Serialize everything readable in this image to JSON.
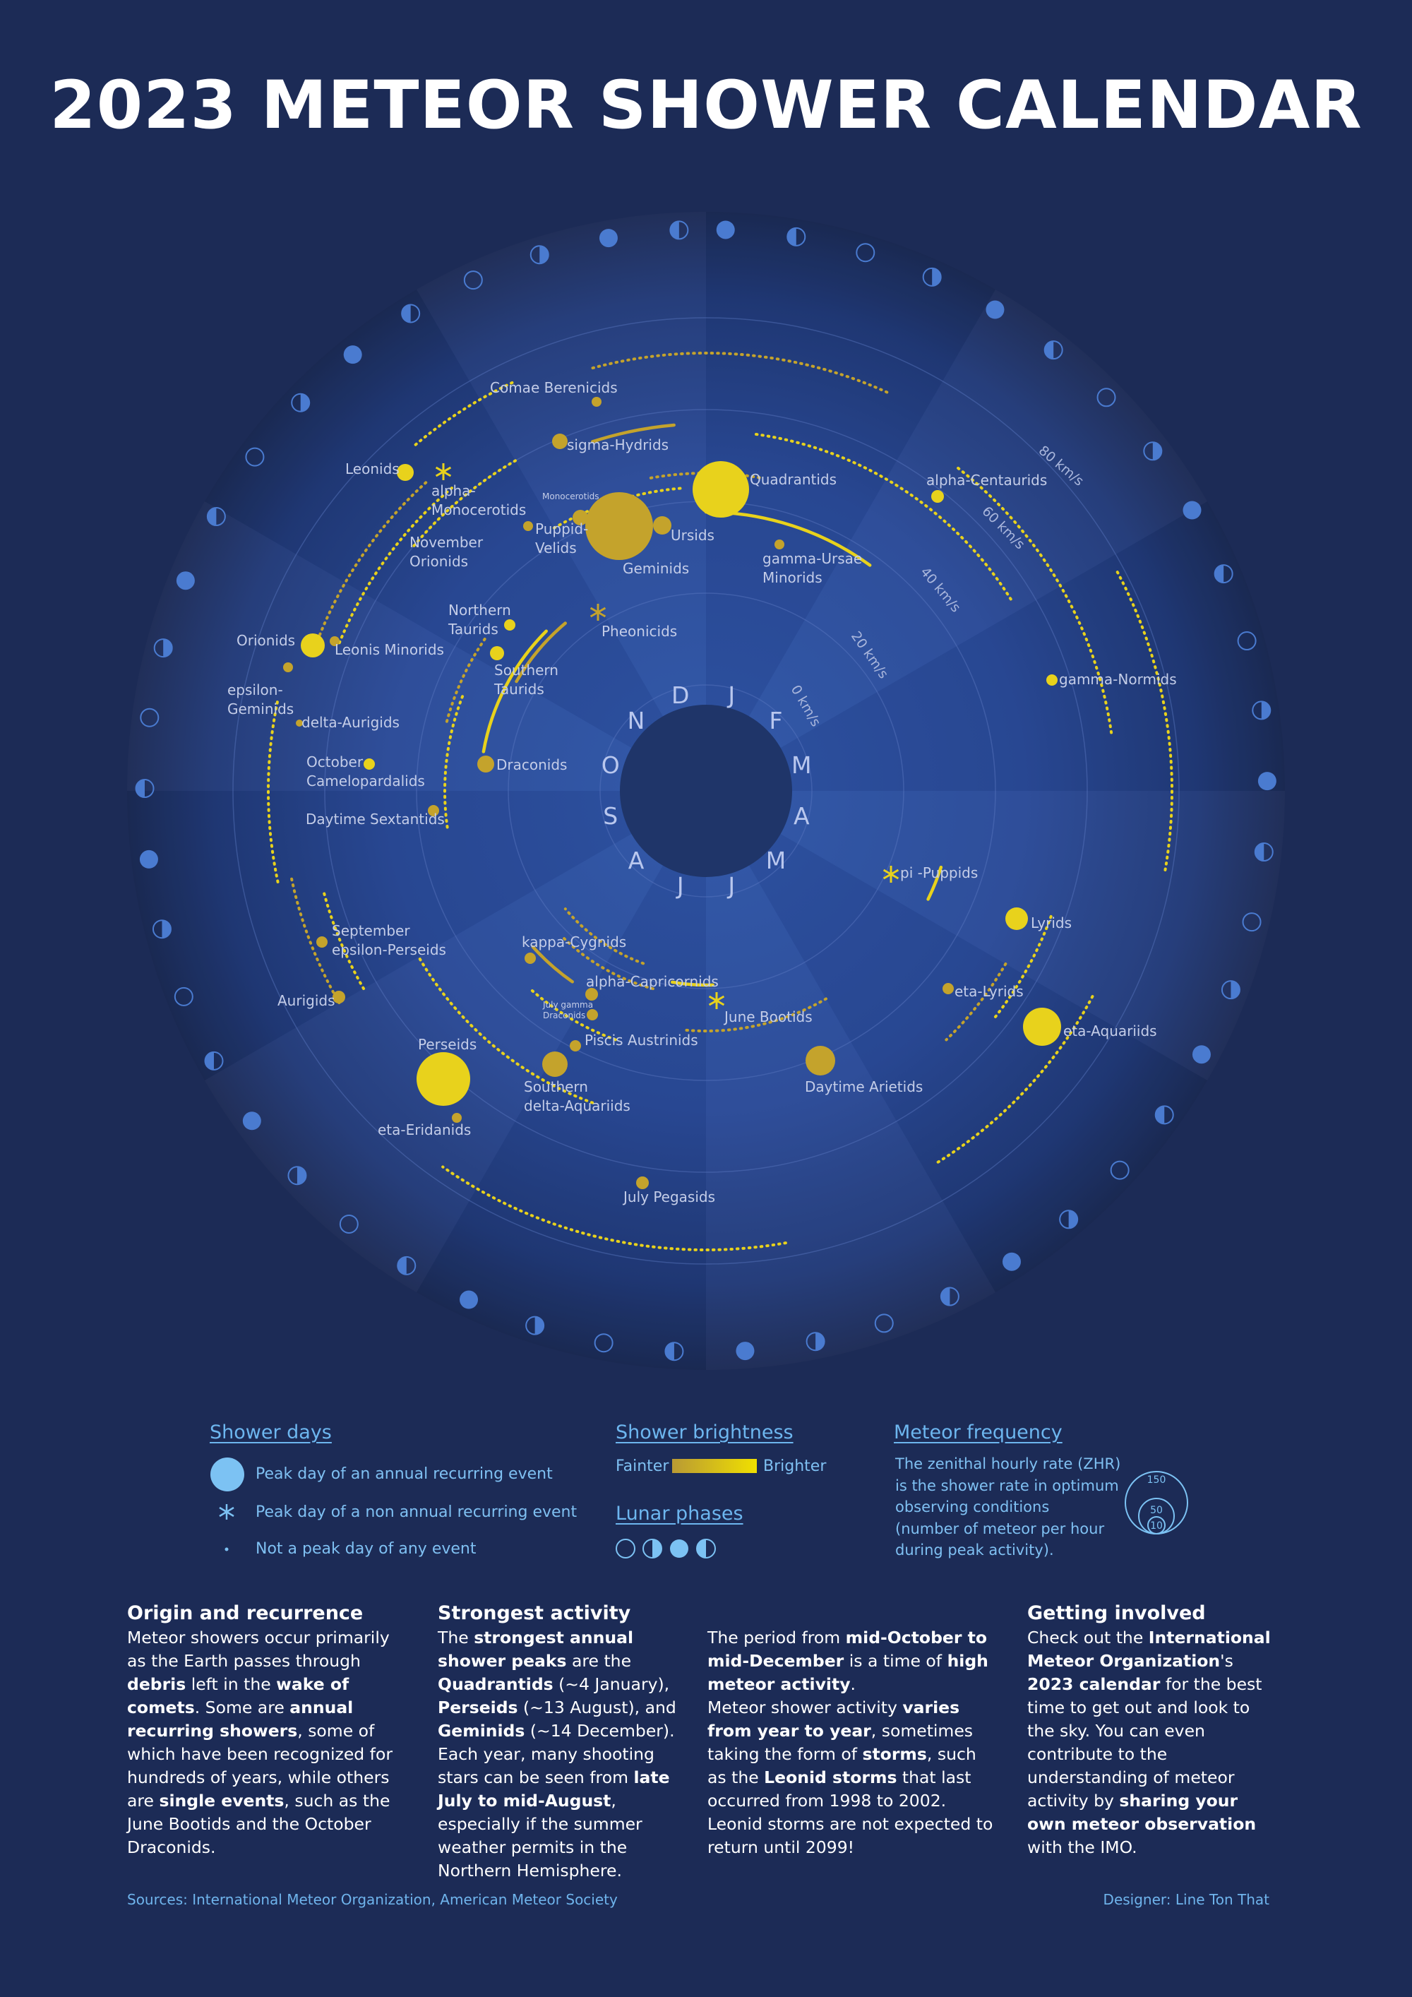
{
  "title": "2023 METEOR SHOWER CALENDAR",
  "months": [
    "J",
    "F",
    "M",
    "A",
    "M",
    "J",
    "J",
    "A",
    "S",
    "O",
    "N",
    "D"
  ],
  "speed_labels": [
    "0 km/s",
    "20 km/s",
    "40 km/s",
    "60 km/s",
    "80 km/s"
  ],
  "showers": [
    {
      "name": "Quadrantids"
    },
    {
      "name": "Ursids"
    },
    {
      "name": "Geminids"
    },
    {
      "name": "gamma-Ursae Minorids"
    },
    {
      "name": "alpha-Centaurids"
    },
    {
      "name": "gamma-Normids"
    },
    {
      "name": "pi -Puppids"
    },
    {
      "name": "Lyrids"
    },
    {
      "name": "eta-Lyrids"
    },
    {
      "name": "eta-Aquariids"
    },
    {
      "name": "Daytime Arietids"
    },
    {
      "name": "June Bootids"
    },
    {
      "name": "alpha-Capricornids"
    },
    {
      "name": "kappa-Cygnids"
    },
    {
      "name": "Piscis Austrinids"
    },
    {
      "name": "July gamma Draconids"
    },
    {
      "name": "Southern delta-Aquariids"
    },
    {
      "name": "Perseids"
    },
    {
      "name": "eta-Eridanids"
    },
    {
      "name": "July Pegasids"
    },
    {
      "name": "Aurigids"
    },
    {
      "name": "September epsilon-Perseids"
    },
    {
      "name": "Daytime Sextantids"
    },
    {
      "name": "October Camelopardalids"
    },
    {
      "name": "Draconids"
    },
    {
      "name": "delta-Aurigids"
    },
    {
      "name": "epsilon-Geminids"
    },
    {
      "name": "Orionids"
    },
    {
      "name": "Leonis Minorids"
    },
    {
      "name": "Southern Taurids"
    },
    {
      "name": "Northern Taurids"
    },
    {
      "name": "Pheonicids"
    },
    {
      "name": "November Orionids"
    },
    {
      "name": "Leonids"
    },
    {
      "name": "alpha-Monocerotids"
    },
    {
      "name": "Monocerotids"
    },
    {
      "name": "Puppid-Velids"
    },
    {
      "name": "sigma-Hydrids"
    },
    {
      "name": "Comae Berenicids"
    }
  ],
  "legend": {
    "shower_days": {
      "title": "Shower days",
      "items": [
        "Peak day of an annual recurring event",
        "Peak day of a non annual recurring event",
        "Not  a peak day of any event"
      ]
    },
    "brightness": {
      "title": "Shower brightness",
      "fainter": "Fainter",
      "brighter": "Brighter"
    },
    "lunar": {
      "title": "Lunar phases"
    },
    "frequency": {
      "title": "Meteor frequency",
      "lines": [
        "The zenithal hourly rate (ZHR)",
        "is the shower rate in optimum",
        "observing conditions",
        "(number of meteor per hour",
        "during peak activity)."
      ],
      "zhr_values": [
        "150",
        "50",
        "10"
      ]
    }
  },
  "columns": {
    "origin": {
      "title": "Origin and recurrence",
      "p1": [
        {
          "t": "Meteor showers occur primarily as the Earth passes through "
        },
        {
          "t": "debris",
          "b": true
        },
        {
          "t": " left in the "
        },
        {
          "t": "wake of comets",
          "b": true
        },
        {
          "t": ". Some are "
        },
        {
          "t": "annual recurring showers",
          "b": true
        },
        {
          "t": ", some of which have been recognized for hundreds of years, while others are "
        },
        {
          "t": "single events",
          "b": true
        },
        {
          "t": ", such as the June Bootids and the October Draconids."
        }
      ]
    },
    "strongest": {
      "title": "Strongest activity",
      "p1": [
        {
          "t": "The "
        },
        {
          "t": "strongest annual shower peaks",
          "b": true
        },
        {
          "t": " are the "
        },
        {
          "t": "Quadrantids",
          "b": true
        },
        {
          "t": " (~4 January), "
        },
        {
          "t": "Perseids",
          "b": true
        },
        {
          "t": " (~13 August), and "
        },
        {
          "t": "Geminids",
          "b": true
        },
        {
          "t": " (~14 December). Each year, many shooting stars can be seen from "
        },
        {
          "t": "late July to mid-August",
          "b": true
        },
        {
          "t": ", especially if the summer weather permits in the Northern Hemisphere."
        }
      ]
    },
    "period": {
      "p1": [
        {
          "t": "The period from "
        },
        {
          "t": "mid-October to mid-December",
          "b": true
        },
        {
          "t": " is a time of "
        },
        {
          "t": "high meteor activity",
          "b": true
        },
        {
          "t": "."
        }
      ],
      "p2": [
        {
          "t": "Meteor shower activity "
        },
        {
          "t": "varies from year to year",
          "b": true
        },
        {
          "t": ", sometimes taking the form of "
        },
        {
          "t": "storms",
          "b": true
        },
        {
          "t": ", such as the "
        },
        {
          "t": "Leonid storms",
          "b": true
        },
        {
          "t": " that last occurred from 1998 to 2002. Leonid storms are not expected to return until 2099!"
        }
      ]
    },
    "involved": {
      "title": "Getting involved",
      "p1": [
        {
          "t": "Check out the "
        },
        {
          "t": "International Meteor Organization",
          "b": true
        },
        {
          "t": "'s "
        },
        {
          "t": "2023 calendar",
          "b": true
        },
        {
          "t": " for the best time to get out and look to the sky. You can even contribute to the understanding of meteor activity by "
        },
        {
          "t": "sharing your own meteor observation",
          "b": true
        },
        {
          "t": " with the IMO."
        }
      ]
    }
  },
  "footer": {
    "sources": "Sources: International Meteor Organization, American Meteor Society",
    "designer": "Designer: Line Ton That"
  },
  "colors": {
    "background": "#1c2b56",
    "shower_yellow": "#e8d21c",
    "shower_gold": "#c4a32c",
    "moon_blue": "#4a7bd0",
    "legend_blue": "#6db6ef"
  }
}
